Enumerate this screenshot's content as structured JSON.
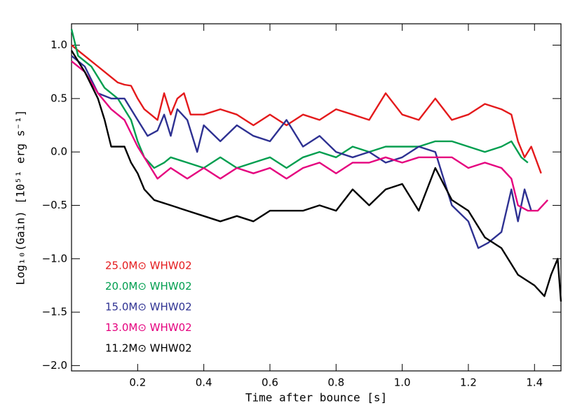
{
  "chart_data": {
    "type": "line",
    "xlabel": "Time after bounce [s]",
    "ylabel": "Log₁₀(Gain) [10⁵¹ erg s⁻¹]",
    "xlim": [
      0.0,
      1.48
    ],
    "ylim": [
      -2.05,
      1.2
    ],
    "xticks": [
      0.2,
      0.4,
      0.6,
      0.8,
      {
        "value": 1.0,
        "label": "1.0"
      },
      1.2,
      1.4
    ],
    "yticks": [
      {
        "value": 1.0,
        "label": "1.0"
      },
      0.5,
      {
        "value": 0.0,
        "label": "0.0"
      },
      {
        "value": -0.5,
        "label": "−0.5"
      },
      {
        "value": -1.0,
        "label": "−1.0"
      },
      {
        "value": -1.5,
        "label": "−1.5"
      },
      {
        "value": -2.0,
        "label": "−2.0"
      }
    ],
    "series": [
      {
        "name": "25.0M⊙ WHW02",
        "color": "#e41a1c",
        "x": [
          0.0,
          0.02,
          0.04,
          0.06,
          0.08,
          0.1,
          0.12,
          0.14,
          0.16,
          0.18,
          0.2,
          0.22,
          0.24,
          0.26,
          0.28,
          0.3,
          0.32,
          0.34,
          0.36,
          0.4,
          0.45,
          0.5,
          0.55,
          0.6,
          0.65,
          0.7,
          0.75,
          0.8,
          0.85,
          0.9,
          0.95,
          1.0,
          1.05,
          1.1,
          1.15,
          1.2,
          1.25,
          1.3,
          1.33,
          1.35,
          1.37,
          1.39,
          1.42
        ],
        "values": [
          1.0,
          0.95,
          0.9,
          0.85,
          0.8,
          0.75,
          0.7,
          0.65,
          0.63,
          0.62,
          0.5,
          0.4,
          0.35,
          0.3,
          0.55,
          0.35,
          0.5,
          0.55,
          0.35,
          0.35,
          0.4,
          0.35,
          0.25,
          0.35,
          0.25,
          0.35,
          0.3,
          0.4,
          0.35,
          0.3,
          0.55,
          0.35,
          0.3,
          0.5,
          0.3,
          0.35,
          0.45,
          0.4,
          0.35,
          0.1,
          -0.05,
          0.05,
          -0.2
        ]
      },
      {
        "name": "20.0M⊙ WHW02",
        "color": "#009e4f",
        "x": [
          0.0,
          0.02,
          0.06,
          0.1,
          0.14,
          0.18,
          0.2,
          0.22,
          0.25,
          0.28,
          0.3,
          0.35,
          0.4,
          0.45,
          0.5,
          0.55,
          0.6,
          0.65,
          0.7,
          0.75,
          0.8,
          0.85,
          0.9,
          0.95,
          1.0,
          1.05,
          1.1,
          1.15,
          1.2,
          1.25,
          1.3,
          1.33,
          1.36,
          1.38
        ],
        "values": [
          1.15,
          0.9,
          0.8,
          0.6,
          0.5,
          0.3,
          0.1,
          -0.05,
          -0.15,
          -0.1,
          -0.05,
          -0.1,
          -0.15,
          -0.05,
          -0.15,
          -0.1,
          -0.05,
          -0.15,
          -0.05,
          0.0,
          -0.05,
          0.05,
          0.0,
          0.05,
          0.05,
          0.05,
          0.1,
          0.1,
          0.05,
          0.0,
          0.05,
          0.1,
          -0.05,
          -0.1
        ]
      },
      {
        "name": "15.0M⊙ WHW02",
        "color": "#2e3192",
        "x": [
          0.0,
          0.04,
          0.08,
          0.12,
          0.16,
          0.2,
          0.23,
          0.26,
          0.28,
          0.3,
          0.32,
          0.35,
          0.38,
          0.4,
          0.45,
          0.5,
          0.55,
          0.6,
          0.65,
          0.7,
          0.75,
          0.8,
          0.85,
          0.9,
          0.95,
          1.0,
          1.05,
          1.1,
          1.15,
          1.2,
          1.23,
          1.26,
          1.3,
          1.33,
          1.35,
          1.37,
          1.39
        ],
        "values": [
          0.9,
          0.8,
          0.55,
          0.5,
          0.5,
          0.3,
          0.15,
          0.2,
          0.35,
          0.15,
          0.4,
          0.3,
          0.0,
          0.25,
          0.1,
          0.25,
          0.15,
          0.1,
          0.3,
          0.05,
          0.15,
          0.0,
          -0.05,
          0.0,
          -0.1,
          -0.05,
          0.05,
          0.0,
          -0.5,
          -0.65,
          -0.9,
          -0.85,
          -0.75,
          -0.35,
          -0.65,
          -0.35,
          -0.55
        ]
      },
      {
        "name": "13.0M⊙ WHW02",
        "color": "#e5007e",
        "x": [
          0.0,
          0.04,
          0.08,
          0.12,
          0.16,
          0.2,
          0.24,
          0.26,
          0.3,
          0.35,
          0.4,
          0.45,
          0.5,
          0.55,
          0.6,
          0.65,
          0.7,
          0.75,
          0.8,
          0.85,
          0.9,
          0.95,
          1.0,
          1.05,
          1.1,
          1.15,
          1.2,
          1.25,
          1.3,
          1.33,
          1.35,
          1.38,
          1.41,
          1.44
        ],
        "values": [
          0.85,
          0.75,
          0.55,
          0.4,
          0.3,
          0.05,
          -0.15,
          -0.25,
          -0.15,
          -0.25,
          -0.15,
          -0.25,
          -0.15,
          -0.2,
          -0.15,
          -0.25,
          -0.15,
          -0.1,
          -0.2,
          -0.1,
          -0.1,
          -0.05,
          -0.1,
          -0.05,
          -0.05,
          -0.05,
          -0.15,
          -0.1,
          -0.15,
          -0.25,
          -0.5,
          -0.55,
          -0.55,
          -0.45
        ]
      },
      {
        "name": "11.2M⊙ WHW02",
        "color": "#000000",
        "x": [
          0.0,
          0.04,
          0.08,
          0.1,
          0.12,
          0.14,
          0.16,
          0.18,
          0.2,
          0.22,
          0.25,
          0.3,
          0.35,
          0.4,
          0.45,
          0.5,
          0.55,
          0.6,
          0.65,
          0.7,
          0.75,
          0.8,
          0.85,
          0.9,
          0.95,
          1.0,
          1.05,
          1.1,
          1.15,
          1.2,
          1.25,
          1.3,
          1.35,
          1.4,
          1.43,
          1.45,
          1.47,
          1.48
        ],
        "values": [
          0.95,
          0.75,
          0.5,
          0.3,
          0.05,
          0.05,
          0.05,
          -0.1,
          -0.2,
          -0.35,
          -0.45,
          -0.5,
          -0.55,
          -0.6,
          -0.65,
          -0.6,
          -0.65,
          -0.55,
          -0.55,
          -0.55,
          -0.5,
          -0.55,
          -0.35,
          -0.5,
          -0.35,
          -0.3,
          -0.55,
          -0.15,
          -0.45,
          -0.55,
          -0.8,
          -0.9,
          -1.15,
          -1.25,
          -1.35,
          -1.15,
          -1.0,
          -1.4
        ]
      }
    ]
  }
}
